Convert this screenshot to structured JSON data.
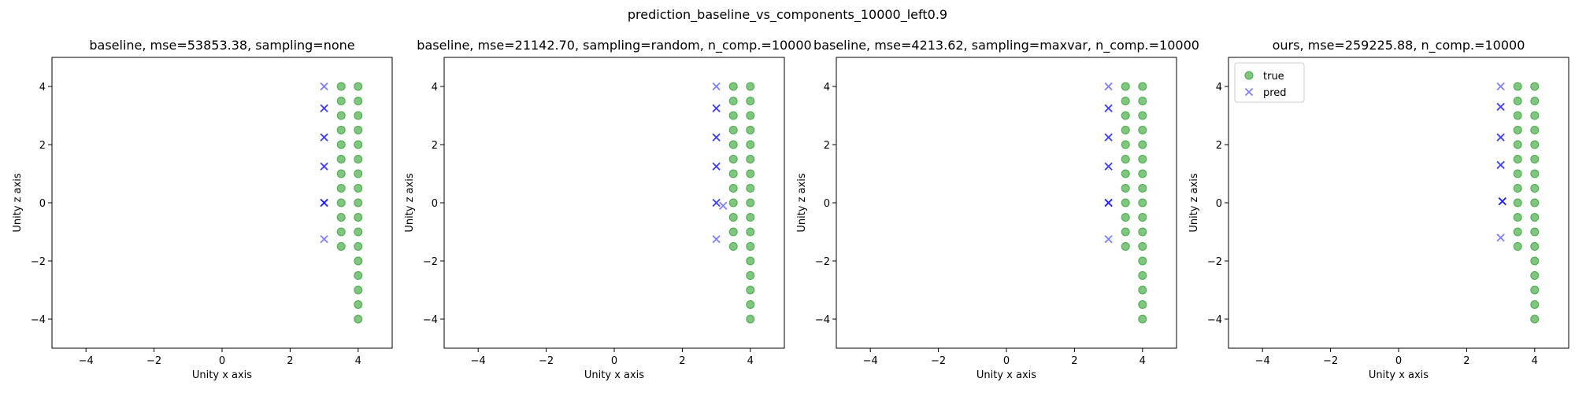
{
  "suptitle": "prediction_baseline_vs_components_10000_left0.9",
  "colors": {
    "true": "#2ca02c",
    "pred": "#0000ff",
    "axes": "#000000",
    "background": "#ffffff"
  },
  "chart_data": [
    {
      "type": "scatter",
      "title": "baseline, mse=53853.38, sampling=none",
      "xlabel": "Unity x axis",
      "ylabel": "Unity z axis",
      "xlim": [
        -5,
        5
      ],
      "ylim": [
        -5,
        5
      ],
      "xticks": [
        -4,
        -2,
        0,
        2,
        4
      ],
      "yticks": [
        -4,
        -2,
        0,
        2,
        4
      ],
      "xtick_labels": [
        "−4",
        "−2",
        "0",
        "2",
        "4"
      ],
      "ytick_labels": [
        "−4",
        "−2",
        "0",
        "2",
        "4"
      ],
      "grid": false,
      "legend": null,
      "series": [
        {
          "name": "true",
          "marker": "circle",
          "x": [
            3.5,
            3.5,
            3.5,
            3.5,
            3.5,
            3.5,
            3.5,
            3.5,
            3.5,
            3.5,
            3.5,
            3.5,
            4,
            4,
            4,
            4,
            4,
            4,
            4,
            4,
            4,
            4,
            4,
            4,
            4,
            4,
            4,
            4,
            4
          ],
          "y": [
            4,
            3.5,
            3,
            2.5,
            2,
            1.5,
            1,
            0.5,
            0,
            -0.5,
            -1,
            -1.5,
            4,
            3.5,
            3,
            2.5,
            2,
            1.5,
            1,
            0.5,
            0,
            -0.5,
            -1,
            -1.5,
            -2,
            -2.5,
            -3,
            -3.5,
            -4
          ]
        },
        {
          "name": "pred",
          "marker": "x",
          "x": [
            3,
            3,
            3,
            3,
            3,
            3,
            3,
            3,
            3,
            3,
            3
          ],
          "y": [
            4,
            3.25,
            3.25,
            2.25,
            2.25,
            1.25,
            1.25,
            0,
            0,
            0,
            -1.25
          ]
        }
      ]
    },
    {
      "type": "scatter",
      "title": "baseline, mse=21142.70, sampling=random, n_comp.=10000",
      "xlabel": "Unity x axis",
      "ylabel": "Unity z axis",
      "xlim": [
        -5,
        5
      ],
      "ylim": [
        -5,
        5
      ],
      "xticks": [
        -4,
        -2,
        0,
        2,
        4
      ],
      "yticks": [
        -4,
        -2,
        0,
        2,
        4
      ],
      "xtick_labels": [
        "−4",
        "−2",
        "0",
        "2",
        "4"
      ],
      "ytick_labels": [
        "−4",
        "−2",
        "0",
        "2",
        "4"
      ],
      "grid": false,
      "legend": null,
      "series": [
        {
          "name": "true",
          "marker": "circle",
          "x": [
            3.5,
            3.5,
            3.5,
            3.5,
            3.5,
            3.5,
            3.5,
            3.5,
            3.5,
            3.5,
            3.5,
            3.5,
            4,
            4,
            4,
            4,
            4,
            4,
            4,
            4,
            4,
            4,
            4,
            4,
            4,
            4,
            4,
            4,
            4
          ],
          "y": [
            4,
            3.5,
            3,
            2.5,
            2,
            1.5,
            1,
            0.5,
            0,
            -0.5,
            -1,
            -1.5,
            4,
            3.5,
            3,
            2.5,
            2,
            1.5,
            1,
            0.5,
            0,
            -0.5,
            -1,
            -1.5,
            -2,
            -2.5,
            -3,
            -3.5,
            -4
          ]
        },
        {
          "name": "pred",
          "marker": "x",
          "x": [
            3,
            3,
            3,
            3,
            3,
            3,
            3,
            3,
            3,
            3.2,
            3
          ],
          "y": [
            4,
            3.25,
            3.25,
            2.25,
            2.25,
            1.25,
            1.25,
            0,
            0,
            -0.1,
            -1.25
          ]
        }
      ]
    },
    {
      "type": "scatter",
      "title": "baseline, mse=4213.62, sampling=maxvar, n_comp.=10000",
      "xlabel": "Unity x axis",
      "ylabel": "Unity z axis",
      "xlim": [
        -5,
        5
      ],
      "ylim": [
        -5,
        5
      ],
      "xticks": [
        -4,
        -2,
        0,
        2,
        4
      ],
      "yticks": [
        -4,
        -2,
        0,
        2,
        4
      ],
      "xtick_labels": [
        "−4",
        "−2",
        "0",
        "2",
        "4"
      ],
      "ytick_labels": [
        "−4",
        "−2",
        "0",
        "2",
        "4"
      ],
      "grid": false,
      "legend": null,
      "series": [
        {
          "name": "true",
          "marker": "circle",
          "x": [
            3.5,
            3.5,
            3.5,
            3.5,
            3.5,
            3.5,
            3.5,
            3.5,
            3.5,
            3.5,
            3.5,
            3.5,
            4,
            4,
            4,
            4,
            4,
            4,
            4,
            4,
            4,
            4,
            4,
            4,
            4,
            4,
            4,
            4,
            4
          ],
          "y": [
            4,
            3.5,
            3,
            2.5,
            2,
            1.5,
            1,
            0.5,
            0,
            -0.5,
            -1,
            -1.5,
            4,
            3.5,
            3,
            2.5,
            2,
            1.5,
            1,
            0.5,
            0,
            -0.5,
            -1,
            -1.5,
            -2,
            -2.5,
            -3,
            -3.5,
            -4
          ]
        },
        {
          "name": "pred",
          "marker": "x",
          "x": [
            3,
            3,
            3,
            3,
            3,
            3,
            3,
            3,
            3,
            3,
            3
          ],
          "y": [
            4,
            3.25,
            3.25,
            2.25,
            2.25,
            1.25,
            1.25,
            0,
            0,
            0,
            -1.25
          ]
        }
      ]
    },
    {
      "type": "scatter",
      "title": "ours, mse=259225.88, n_comp.=10000",
      "xlabel": "Unity x axis",
      "ylabel": "Unity z axis",
      "xlim": [
        -5,
        5
      ],
      "ylim": [
        -5,
        5
      ],
      "xticks": [
        -4,
        -2,
        0,
        2,
        4
      ],
      "yticks": [
        -4,
        -2,
        0,
        2,
        4
      ],
      "xtick_labels": [
        "−4",
        "−2",
        "0",
        "2",
        "4"
      ],
      "ytick_labels": [
        "−4",
        "−2",
        "0",
        "2",
        "4"
      ],
      "grid": false,
      "legend": {
        "position": "upper left",
        "entries": [
          "true",
          "pred"
        ]
      },
      "series": [
        {
          "name": "true",
          "marker": "circle",
          "x": [
            3.5,
            3.5,
            3.5,
            3.5,
            3.5,
            3.5,
            3.5,
            3.5,
            3.5,
            3.5,
            3.5,
            3.5,
            4,
            4,
            4,
            4,
            4,
            4,
            4,
            4,
            4,
            4,
            4,
            4,
            4,
            4,
            4,
            4,
            4
          ],
          "y": [
            4,
            3.5,
            3,
            2.5,
            2,
            1.5,
            1,
            0.5,
            0,
            -0.5,
            -1,
            -1.5,
            4,
            3.5,
            3,
            2.5,
            2,
            1.5,
            1,
            0.5,
            0,
            -0.5,
            -1,
            -1.5,
            -2,
            -2.5,
            -3,
            -3.5,
            -4
          ]
        },
        {
          "name": "pred",
          "marker": "x",
          "x": [
            3,
            3,
            3,
            3,
            3,
            3,
            3,
            3.05,
            3.05,
            3.05,
            3
          ],
          "y": [
            4,
            3.3,
            3.3,
            2.25,
            2.25,
            1.3,
            1.3,
            0.05,
            0.05,
            0.05,
            -1.2
          ]
        }
      ]
    }
  ]
}
